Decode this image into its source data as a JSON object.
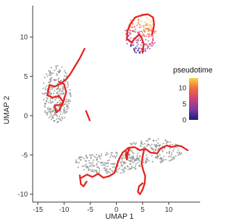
{
  "chart_data": {
    "type": "scatter",
    "xlabel": "UMAP 1",
    "ylabel": "UMAP 2",
    "xlim": [
      -16,
      16
    ],
    "ylim": [
      -11,
      14
    ],
    "x_ticks": [
      -15,
      -10,
      -5,
      0,
      5,
      10
    ],
    "y_ticks": [
      -10,
      -5,
      0,
      5,
      10
    ],
    "grid": false,
    "legend": {
      "title": "pseudotime",
      "placement": "right",
      "ticks": [
        10,
        5,
        0
      ],
      "range": [
        0,
        13
      ],
      "colors": [
        "#1c1a78",
        "#7b3aa6",
        "#cf3f76",
        "#f06a3f",
        "#f9d23a"
      ]
    },
    "cell_color": "#8c8c8c",
    "trajectory_color": "#e8231f",
    "clusters": [
      {
        "name": "",
        "center": [
          -11.5,
          2.8
        ],
        "radius": [
          2.8,
          3.7
        ],
        "count": 260,
        "colored_by_pseudotime": false
      },
      {
        "name": "",
        "center": [
          4.6,
          10.3
        ],
        "radius": [
          3.0,
          2.4
        ],
        "count": 190,
        "colored_by_pseudotime": true
      },
      {
        "name": "",
        "center": [
          -1.5,
          -6.0
        ],
        "radius": [
          6.5,
          1.4
        ],
        "count": 220,
        "colored_by_pseudotime": false
      },
      {
        "name": "",
        "center": [
          7.0,
          -4.5
        ],
        "radius": [
          5.5,
          1.6
        ],
        "count": 180,
        "colored_by_pseudotime": false
      }
    ],
    "trajectories": [
      {
        "x": [
          -6.1,
          -7.0,
          -8.0,
          -8.8,
          -9.5,
          -10.5,
          -11.8,
          -12.8,
          -13.2,
          -12.2,
          -11.0,
          -10.2,
          -10.8,
          -11.5,
          -11.8,
          -10.3,
          -9.6,
          -10.0,
          -11.0
        ],
        "y": [
          8.5,
          7.3,
          6.2,
          5.3,
          4.7,
          4.1,
          3.7,
          3.9,
          2.6,
          2.3,
          2.5,
          1.8,
          0.8,
          0.4,
          1.3,
          1.4,
          3.0,
          4.0,
          4.3
        ]
      },
      {
        "x": [
          -5.8,
          -5.1
        ],
        "y": [
          0.6,
          -0.6
        ]
      },
      {
        "x": [
          -6.7,
          -5.6,
          -4.6,
          -3.5,
          -2.5,
          -1.4,
          -0.4,
          0.2,
          0.6,
          1.2,
          2.3,
          3.4,
          4.5,
          5.5,
          6.5,
          7.8,
          8.4,
          9.6,
          10.6,
          11.6,
          12.4,
          13.6
        ],
        "y": [
          -7.9,
          -7.5,
          -7.8,
          -7.4,
          -7.9,
          -7.7,
          -7.3,
          -6.1,
          -5.4,
          -4.7,
          -4.1,
          -4.0,
          -4.4,
          -4.2,
          -4.7,
          -4.8,
          -4.2,
          -3.8,
          -4.0,
          -3.8,
          -3.9,
          -4.4
        ]
      },
      {
        "x": [
          -7.0,
          -6.8,
          -6.3,
          -5.7
        ],
        "y": [
          -7.6,
          -8.7,
          -9.0,
          -8.4
        ]
      },
      {
        "x": [
          5.3,
          5.0,
          4.8,
          5.1,
          5.5,
          5.4,
          5.0,
          4.5,
          4.1,
          4.3,
          5.0
        ],
        "y": [
          -4.3,
          -5.2,
          -6.1,
          -6.9,
          -7.7,
          -8.6,
          -9.4,
          -10.0,
          -9.7,
          -9.0,
          -8.6
        ]
      },
      {
        "x": [
          2.4,
          2.1,
          2.0,
          1.8,
          1.9
        ],
        "y": [
          -4.2,
          -5.0,
          -5.6,
          -5.2,
          -4.6
        ]
      },
      {
        "x": [
          5.0,
          3.6,
          2.7,
          2.1,
          2.0,
          2.9,
          3.5,
          4.3,
          4.8,
          5.2,
          5.0
        ],
        "y": [
          12.8,
          12.5,
          11.7,
          10.8,
          9.8,
          9.3,
          9.8,
          10.3,
          9.9,
          9.1,
          8.0
        ]
      },
      {
        "x": [
          4.9,
          6.0,
          7.0,
          7.2,
          7.0,
          6.8
        ],
        "y": [
          12.8,
          12.9,
          12.5,
          11.6,
          10.8,
          10.3
        ]
      }
    ]
  }
}
